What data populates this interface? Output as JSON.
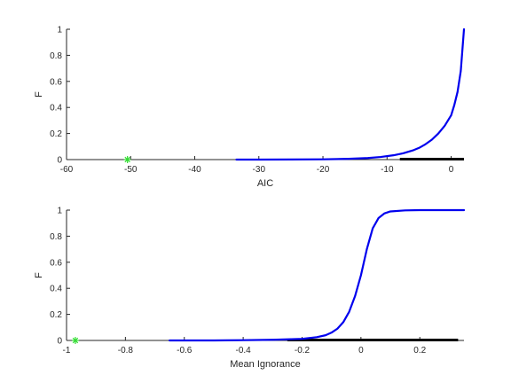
{
  "chart_data": [
    {
      "type": "line",
      "title": "",
      "xlabel": "AIC",
      "ylabel": "F",
      "xlim": [
        -60,
        2
      ],
      "ylim": [
        0,
        1
      ],
      "xticks": [
        -60,
        -50,
        -40,
        -30,
        -20,
        -10,
        0
      ],
      "yticks": [
        0,
        0.2,
        0.4,
        0.6,
        0.8,
        1
      ],
      "grid": false,
      "legend": "none",
      "colors": {
        "curve": "#0000ee",
        "marker": "#33dd33",
        "sample_ticks": "#000000"
      },
      "series": [
        {
          "kind": "curve",
          "x": [
            -33.5,
            -30,
            -25,
            -20,
            -16,
            -13,
            -11,
            -9,
            -7.5,
            -6,
            -5,
            -4,
            -3,
            -2,
            -1,
            0,
            0.5,
            1,
            1.5,
            2
          ],
          "y": [
            0,
            0,
            0.001,
            0.002,
            0.006,
            0.012,
            0.02,
            0.033,
            0.048,
            0.07,
            0.09,
            0.118,
            0.153,
            0.2,
            0.26,
            0.34,
            0.42,
            0.52,
            0.68,
            1.0
          ]
        },
        {
          "kind": "marker",
          "symbol": "asterisk",
          "x": [
            -50.5
          ],
          "y": [
            0
          ]
        },
        {
          "kind": "rug",
          "x_range": [
            -8,
            2
          ],
          "y": 0
        }
      ]
    },
    {
      "type": "line",
      "title": "",
      "xlabel": "Mean Ignorance",
      "ylabel": "F",
      "xlim": [
        -1,
        0.35
      ],
      "ylim": [
        0,
        1
      ],
      "xticks": [
        -1,
        -0.8,
        -0.6,
        -0.4,
        -0.2,
        0,
        0.2
      ],
      "yticks": [
        0,
        0.2,
        0.4,
        0.6,
        0.8,
        1
      ],
      "grid": false,
      "legend": "none",
      "colors": {
        "curve": "#0000ee",
        "marker": "#33dd33",
        "sample_ticks": "#000000"
      },
      "series": [
        {
          "kind": "curve",
          "x": [
            -0.65,
            -0.5,
            -0.4,
            -0.3,
            -0.2,
            -0.15,
            -0.12,
            -0.1,
            -0.08,
            -0.06,
            -0.04,
            -0.02,
            0,
            0.01,
            0.02,
            0.04,
            0.06,
            0.08,
            0.1,
            0.15,
            0.2,
            0.35
          ],
          "y": [
            0,
            0,
            0.002,
            0.005,
            0.012,
            0.025,
            0.04,
            0.06,
            0.09,
            0.14,
            0.22,
            0.34,
            0.5,
            0.6,
            0.7,
            0.86,
            0.94,
            0.975,
            0.99,
            0.998,
            1.0,
            1.0
          ]
        },
        {
          "kind": "marker",
          "symbol": "asterisk",
          "x": [
            -0.97
          ],
          "y": [
            0
          ]
        },
        {
          "kind": "rug",
          "x_range": [
            -0.25,
            0.33
          ],
          "y": 0
        }
      ]
    }
  ]
}
